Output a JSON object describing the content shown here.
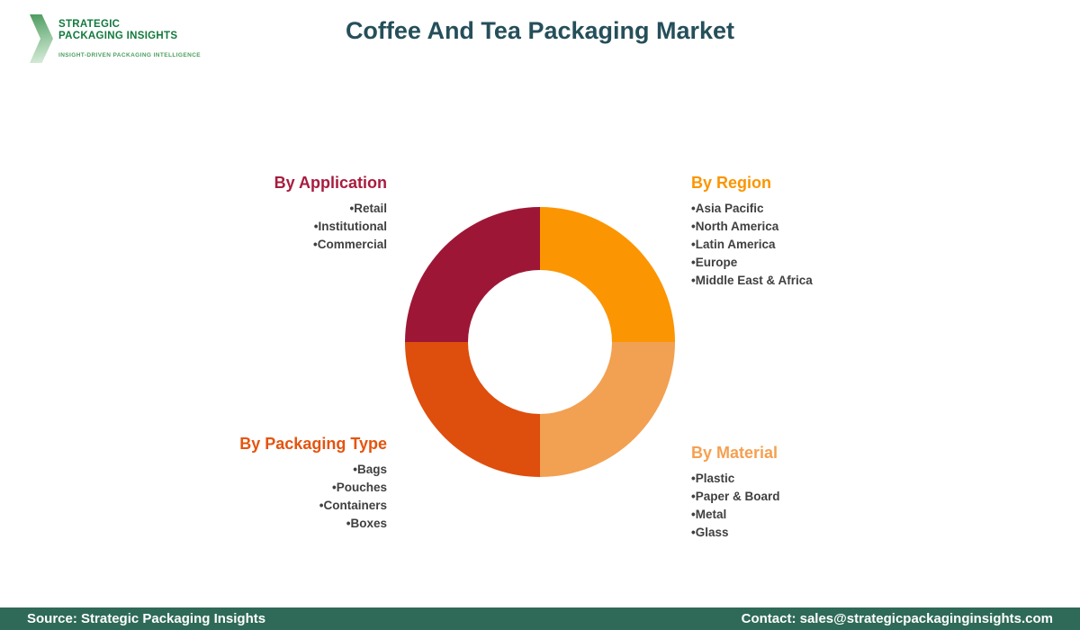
{
  "header": {
    "title": "Coffee And Tea Packaging Market",
    "title_color": "#254F5A",
    "logo": {
      "line1": "STRATEGIC",
      "line2": "PACKAGING INSIGHTS",
      "tagline": "INSIGHT-DRIVEN PACKAGING INTELLIGENCE",
      "text_color": "#127A3C",
      "tagline_color": "#4AA05E"
    }
  },
  "sections": [
    {
      "heading": "By Application",
      "color": "#A81C3E",
      "align": "right",
      "items": [
        "Retail",
        "Institutional",
        "Commercial"
      ]
    },
    {
      "heading": "By Region",
      "color": "#FB9501",
      "align": "left",
      "items": [
        "Asia Pacific",
        "North America",
        "Latin America",
        "Europe",
        "Middle East & Africa"
      ]
    },
    {
      "heading": "By Packaging Type",
      "color": "#E5540E",
      "align": "right",
      "items": [
        "Bags",
        "Pouches",
        "Containers",
        "Boxes"
      ]
    },
    {
      "heading": "By Material",
      "color": "#F5A050",
      "align": "left",
      "items": [
        "Plastic",
        "Paper & Board",
        "Metal",
        "Glass"
      ]
    }
  ],
  "chart_data": {
    "type": "pie",
    "subtype": "donut",
    "title": "Coffee And Tea Packaging Market",
    "inner_radius_ratio": 0.53,
    "legend_position": "none",
    "segments": [
      {
        "label": "By Region",
        "value": 25,
        "color": "#FB9501",
        "position": "top-right"
      },
      {
        "label": "By Material",
        "value": 25,
        "color": "#F2A052",
        "position": "bottom-right"
      },
      {
        "label": "By Packaging Type",
        "value": 25,
        "color": "#DE4E0D",
        "position": "bottom-left"
      },
      {
        "label": "By Application",
        "value": 25,
        "color": "#9E1636",
        "position": "top-left"
      }
    ]
  },
  "footer": {
    "source": "Source: Strategic Packaging Insights",
    "contact": "Contact: sales@strategicpackaginginsights.com",
    "bg_color": "#2E6A57",
    "text_color": "#FFFFFF"
  }
}
